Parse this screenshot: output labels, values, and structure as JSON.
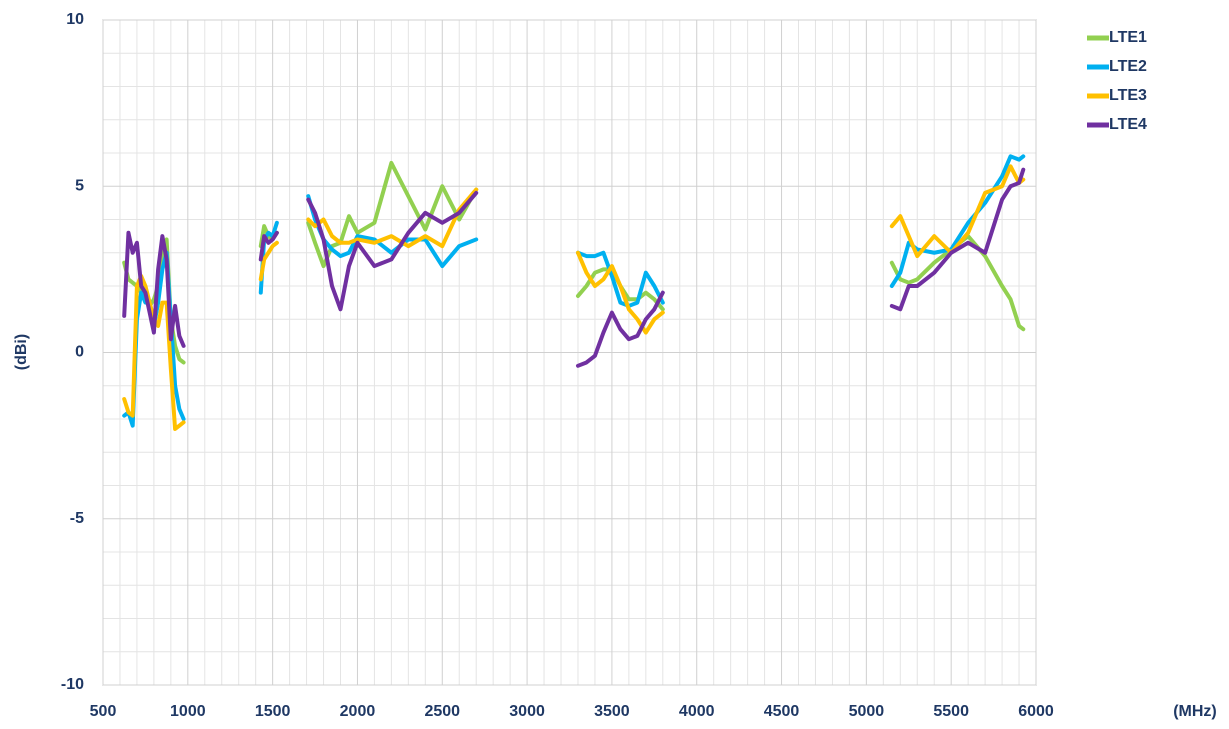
{
  "chart_data": {
    "type": "line",
    "x_label": "(MHz)",
    "y_label": "(dBi)",
    "x": [
      625,
      650,
      675,
      700,
      725,
      750,
      775,
      800,
      825,
      850,
      875,
      900,
      925,
      950,
      975,
      1200,
      1430,
      1450,
      1475,
      1500,
      1525,
      1600,
      1710,
      1750,
      1800,
      1850,
      1900,
      1950,
      2000,
      2100,
      2200,
      2300,
      2400,
      2500,
      2600,
      2700,
      3000,
      3300,
      3350,
      3400,
      3450,
      3500,
      3550,
      3600,
      3650,
      3700,
      3750,
      3800,
      4500,
      5150,
      5200,
      5250,
      5300,
      5400,
      5500,
      5600,
      5700,
      5800,
      5850,
      5900,
      5925
    ],
    "series": [
      {
        "name": "LTE1",
        "color": "#92d050",
        "values": [
          2.7,
          2.2,
          2.1,
          2.0,
          1.8,
          1.6,
          1.4,
          1.6,
          2.0,
          3.0,
          3.4,
          1.0,
          0.2,
          -0.2,
          -0.3,
          null,
          3.2,
          3.8,
          3.5,
          3.4,
          3.6,
          null,
          3.9,
          3.3,
          2.6,
          3.2,
          3.3,
          4.1,
          3.6,
          3.9,
          5.7,
          4.7,
          3.7,
          5.0,
          4.0,
          4.9,
          null,
          1.7,
          2.0,
          2.4,
          2.5,
          2.5,
          2.0,
          1.6,
          1.6,
          1.8,
          1.6,
          1.3,
          null,
          2.7,
          2.2,
          2.1,
          2.2,
          2.7,
          3.1,
          3.5,
          2.9,
          2.0,
          1.6,
          0.8,
          0.7
        ]
      },
      {
        "name": "LTE2",
        "color": "#00b0f0",
        "values": [
          -1.9,
          -1.8,
          -2.2,
          1.0,
          1.8,
          1.5,
          1.5,
          0.8,
          1.5,
          2.5,
          3.0,
          1.0,
          -1.0,
          -1.7,
          -2.0,
          null,
          1.8,
          3.4,
          3.6,
          3.5,
          3.9,
          null,
          4.7,
          4.0,
          3.4,
          3.1,
          2.9,
          3.0,
          3.5,
          3.4,
          3.0,
          3.4,
          3.4,
          2.6,
          3.2,
          3.4,
          null,
          3.0,
          2.9,
          2.9,
          3.0,
          2.3,
          1.5,
          1.4,
          1.5,
          2.4,
          2.0,
          1.5,
          null,
          2.0,
          2.4,
          3.3,
          3.1,
          3.0,
          3.1,
          3.9,
          4.5,
          5.3,
          5.9,
          5.8,
          5.9
        ]
      },
      {
        "name": "LTE3",
        "color": "#ffc000",
        "values": [
          -1.4,
          -1.8,
          -1.9,
          2.0,
          2.3,
          2.0,
          1.5,
          1.0,
          0.8,
          1.5,
          1.5,
          -0.5,
          -2.3,
          -2.2,
          -2.1,
          null,
          2.2,
          2.8,
          3.0,
          3.2,
          3.3,
          null,
          4.0,
          3.8,
          4.0,
          3.5,
          3.3,
          3.3,
          3.4,
          3.3,
          3.5,
          3.2,
          3.5,
          3.2,
          4.3,
          4.9,
          null,
          3.0,
          2.4,
          2.0,
          2.2,
          2.6,
          2.0,
          1.3,
          1.0,
          0.6,
          1.0,
          1.2,
          null,
          3.8,
          4.1,
          3.5,
          2.9,
          3.5,
          3.0,
          3.6,
          4.8,
          5.0,
          5.6,
          5.1,
          5.2
        ]
      },
      {
        "name": "LTE4",
        "color": "#7030a0",
        "values": [
          1.1,
          3.6,
          3.0,
          3.3,
          2.0,
          1.8,
          1.2,
          0.6,
          2.5,
          3.5,
          2.8,
          0.4,
          1.4,
          0.5,
          0.2,
          null,
          2.8,
          3.5,
          3.3,
          3.4,
          3.6,
          null,
          4.6,
          4.2,
          3.4,
          2.0,
          1.3,
          2.6,
          3.3,
          2.6,
          2.8,
          3.6,
          4.2,
          3.9,
          4.2,
          4.8,
          null,
          -0.4,
          -0.3,
          -0.1,
          0.6,
          1.2,
          0.7,
          0.4,
          0.5,
          1.0,
          1.3,
          1.8,
          null,
          1.4,
          1.3,
          2.0,
          2.0,
          2.4,
          3.0,
          3.3,
          3.0,
          4.6,
          5.0,
          5.1,
          5.5
        ]
      }
    ],
    "xlim": [
      500,
      6000
    ],
    "xticks": [
      500,
      1000,
      1500,
      2000,
      2500,
      3000,
      3500,
      4000,
      4500,
      5000,
      5500,
      6000
    ],
    "ylim": [
      -10,
      10
    ],
    "yticks": [
      -10,
      -5,
      0,
      5,
      10
    ],
    "grid": true,
    "legend": "upper right"
  }
}
